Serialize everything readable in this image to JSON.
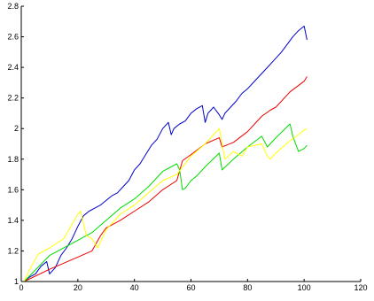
{
  "chart_data": {
    "type": "line",
    "title": "",
    "xlabel": "",
    "ylabel": "",
    "xlim": [
      0,
      120
    ],
    "ylim": [
      1,
      2.8
    ],
    "x_ticks": [
      0,
      20,
      40,
      60,
      80,
      100,
      120
    ],
    "y_ticks": [
      1,
      1.2,
      1.4,
      1.6,
      1.8,
      2,
      2.2,
      2.4,
      2.6,
      2.8
    ],
    "x_tick_labels": [
      "0",
      "20",
      "40",
      "60",
      "80",
      "100",
      "120"
    ],
    "y_tick_labels": [
      "1",
      "1.2",
      "1.4",
      "1.6",
      "1.8",
      "2",
      "2.2",
      "2.4",
      "2.6",
      "2.8"
    ],
    "grid": false,
    "legend": "none",
    "series": [
      {
        "color": "#0000cc",
        "x": [
          1,
          3,
          5,
          7,
          9,
          10,
          12,
          14,
          16,
          18,
          20,
          22,
          24,
          26,
          28,
          30,
          32,
          34,
          36,
          38,
          40,
          42,
          44,
          46,
          48,
          50,
          52,
          53,
          54,
          56,
          58,
          60,
          62,
          64,
          65,
          66,
          68,
          70,
          71,
          72,
          74,
          76,
          78,
          80,
          82,
          84,
          86,
          88,
          90,
          92,
          94,
          96,
          98,
          100,
          101
        ],
        "y": [
          1.0,
          1.03,
          1.05,
          1.1,
          1.13,
          1.05,
          1.09,
          1.17,
          1.22,
          1.28,
          1.36,
          1.43,
          1.46,
          1.48,
          1.5,
          1.53,
          1.56,
          1.58,
          1.62,
          1.66,
          1.73,
          1.77,
          1.83,
          1.89,
          1.93,
          2.0,
          2.04,
          1.96,
          2.0,
          2.03,
          2.05,
          2.1,
          2.13,
          2.15,
          2.04,
          2.1,
          2.14,
          2.09,
          2.06,
          2.1,
          2.14,
          2.18,
          2.23,
          2.26,
          2.3,
          2.34,
          2.38,
          2.42,
          2.46,
          2.5,
          2.55,
          2.6,
          2.64,
          2.67,
          2.58
        ]
      },
      {
        "color": "#ee0000",
        "x": [
          1,
          10,
          20,
          25,
          28,
          30,
          35,
          40,
          45,
          50,
          55,
          57,
          60,
          65,
          70,
          71,
          75,
          80,
          85,
          88,
          90,
          95,
          100,
          101
        ],
        "y": [
          1.0,
          1.08,
          1.16,
          1.2,
          1.3,
          1.35,
          1.4,
          1.46,
          1.52,
          1.6,
          1.66,
          1.79,
          1.83,
          1.9,
          1.94,
          1.88,
          1.91,
          1.98,
          2.08,
          2.12,
          2.14,
          2.24,
          2.31,
          2.34
        ]
      },
      {
        "color": "#00dd00",
        "x": [
          1,
          10,
          20,
          25,
          30,
          35,
          40,
          45,
          50,
          55,
          56,
          57,
          58,
          60,
          62,
          65,
          70,
          71,
          75,
          80,
          85,
          87,
          90,
          95,
          96,
          98,
          100,
          101
        ],
        "y": [
          1.0,
          1.17,
          1.27,
          1.32,
          1.4,
          1.48,
          1.54,
          1.62,
          1.72,
          1.77,
          1.73,
          1.6,
          1.61,
          1.66,
          1.69,
          1.75,
          1.84,
          1.73,
          1.8,
          1.88,
          1.95,
          1.88,
          1.94,
          2.03,
          1.95,
          1.85,
          1.87,
          1.89
        ]
      },
      {
        "color": "#ffff00",
        "x": [
          1,
          3,
          6,
          10,
          15,
          20,
          21,
          23,
          25,
          27,
          30,
          35,
          40,
          45,
          50,
          55,
          60,
          65,
          68,
          70,
          72,
          75,
          78,
          80,
          85,
          87,
          88,
          90,
          95,
          98,
          100,
          101
        ],
        "y": [
          1.0,
          1.08,
          1.18,
          1.22,
          1.28,
          1.44,
          1.46,
          1.3,
          1.28,
          1.22,
          1.34,
          1.44,
          1.5,
          1.58,
          1.66,
          1.7,
          1.82,
          1.9,
          1.96,
          2.0,
          1.8,
          1.85,
          1.82,
          1.88,
          1.9,
          1.82,
          1.8,
          1.84,
          1.92,
          1.96,
          1.99,
          2.0
        ]
      }
    ]
  }
}
